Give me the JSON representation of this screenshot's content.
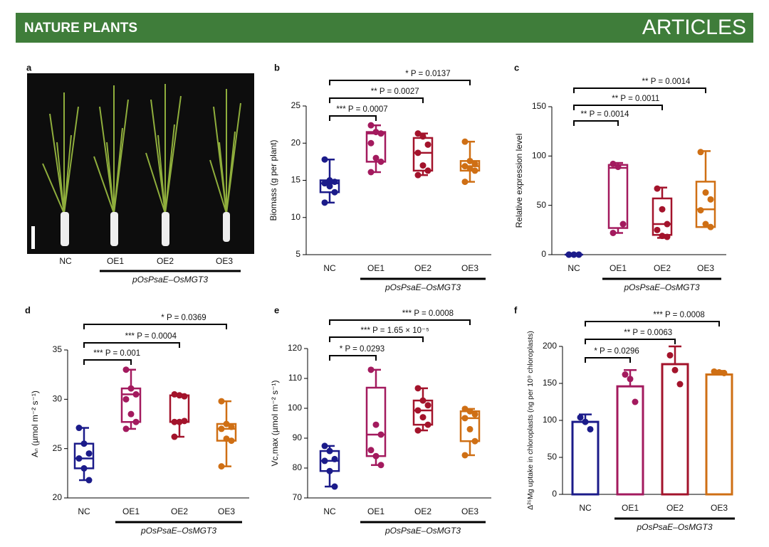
{
  "header": {
    "journal": "NATURE PLANTS",
    "section": "ARTICLES"
  },
  "photo": {
    "panel": "a",
    "categories": [
      "NC",
      "OE1",
      "OE2",
      "OE3"
    ],
    "group_label": "pOsPsaE–OsMGT3"
  },
  "chart_data": [
    {
      "type": "box",
      "panel": "b",
      "y_label": "Biomass (g per plant)",
      "categories": [
        "NC",
        "OE1",
        "OE2",
        "OE3"
      ],
      "group_label": "pOsPsaE–OsMGT3",
      "ylim": [
        5,
        25
      ],
      "yticks": [
        5,
        10,
        15,
        20,
        25
      ],
      "annotations": [
        "*** P = 0.0007",
        "** P = 0.0027",
        "* P = 0.0137"
      ],
      "boxes": [
        {
          "color": "#1b1b8a",
          "min": 12.0,
          "q1": 13.4,
          "median": 14.6,
          "q3": 15.0,
          "max": 17.8,
          "points": [
            17.8,
            15.0,
            14.8,
            14.6,
            14.2,
            13.4,
            12.0
          ]
        },
        {
          "color": "#a31a5e",
          "min": 16.1,
          "q1": 17.5,
          "median": 21.3,
          "q3": 21.5,
          "max": 22.4,
          "points": [
            22.4,
            21.5,
            21.3,
            20.0,
            18.0,
            17.5,
            16.1
          ]
        },
        {
          "color": "#a3132b",
          "min": 15.7,
          "q1": 16.3,
          "median": 18.7,
          "q3": 20.7,
          "max": 21.3,
          "points": [
            21.3,
            20.9,
            19.8,
            18.7,
            17.0,
            16.3,
            15.7
          ]
        },
        {
          "color": "#cf6f14",
          "min": 14.8,
          "q1": 16.3,
          "median": 16.9,
          "q3": 17.6,
          "max": 20.2,
          "points": [
            20.2,
            17.6,
            17.2,
            16.9,
            16.6,
            16.3,
            14.8
          ]
        }
      ]
    },
    {
      "type": "box",
      "panel": "c",
      "y_label": "Relative expression level",
      "categories": [
        "NC",
        "OE1",
        "OE2",
        "OE3"
      ],
      "group_label": "pOsPsaE–OsMGT3",
      "ylim": [
        0,
        150
      ],
      "yticks": [
        0,
        50,
        100,
        150
      ],
      "annotations": [
        "** P = 0.0014",
        "** P = 0.0011",
        "** P = 0.0014"
      ],
      "boxes": [
        {
          "color": "#1b1b8a",
          "min": 0,
          "q1": 0,
          "median": 0,
          "q3": 0,
          "max": 0,
          "points": [
            0,
            0,
            0,
            0,
            0,
            0,
            0
          ]
        },
        {
          "color": "#a31a5e",
          "min": 22,
          "q1": 27,
          "median": 88,
          "q3": 91,
          "max": 93,
          "points": [
            92,
            89,
            31,
            22
          ]
        },
        {
          "color": "#a3132b",
          "min": 17,
          "q1": 20,
          "median": 31,
          "q3": 57,
          "max": 68,
          "points": [
            67,
            46,
            31,
            25,
            19,
            18
          ]
        },
        {
          "color": "#cf6f14",
          "min": 28,
          "q1": 28,
          "median": 46,
          "q3": 74,
          "max": 105,
          "points": [
            104,
            63,
            56,
            45,
            31,
            28
          ]
        }
      ]
    },
    {
      "type": "box",
      "panel": "d",
      "y_label": "Aₙ (µmol m⁻² s⁻¹)",
      "categories": [
        "NC",
        "OE1",
        "OE2",
        "OE3"
      ],
      "group_label": "pOsPsaE–OsMGT3",
      "ylim": [
        20,
        35
      ],
      "yticks": [
        20,
        25,
        30,
        35
      ],
      "annotations": [
        "*** P = 0.001",
        "*** P = 0.0004",
        "* P = 0.0369"
      ],
      "boxes": [
        {
          "color": "#1b1b8a",
          "min": 21.8,
          "q1": 23.0,
          "median": 24.0,
          "q3": 25.5,
          "max": 27.1,
          "points": [
            27.1,
            25.5,
            24.5,
            24.0,
            23.0,
            21.8
          ]
        },
        {
          "color": "#a31a5e",
          "min": 27.0,
          "q1": 27.7,
          "median": 30.5,
          "q3": 31.1,
          "max": 33.0,
          "points": [
            33.0,
            31.1,
            30.5,
            30.0,
            28.5,
            27.7,
            27.0
          ]
        },
        {
          "color": "#a3132b",
          "min": 26.2,
          "q1": 27.7,
          "median": 27.7,
          "q3": 30.4,
          "max": 30.5,
          "points": [
            30.5,
            30.4,
            30.3,
            27.7,
            27.7,
            27.8,
            26.2
          ]
        },
        {
          "color": "#cf6f14",
          "min": 23.2,
          "q1": 25.8,
          "median": 27.0,
          "q3": 27.5,
          "max": 29.8,
          "points": [
            29.8,
            27.5,
            27.2,
            27.0,
            26.0,
            25.8,
            23.2
          ]
        }
      ]
    },
    {
      "type": "box",
      "panel": "e",
      "y_label": "Vc,max (µmol m⁻² s⁻¹)",
      "categories": [
        "NC",
        "OE1",
        "OE2",
        "OE3"
      ],
      "group_label": "pOsPsaE–OsMGT3",
      "ylim": [
        70,
        120
      ],
      "yticks": [
        70,
        80,
        90,
        100,
        110,
        120
      ],
      "annotations": [
        "* P = 0.0293",
        "*** P = 1.65 × 10⁻⁵",
        "*** P = 0.0008"
      ],
      "boxes": [
        {
          "color": "#1b1b8a",
          "min": 73.8,
          "q1": 79.0,
          "median": 82.4,
          "q3": 85.7,
          "max": 87.4,
          "points": [
            87.4,
            85.7,
            83.0,
            82.4,
            79.0,
            73.8
          ]
        },
        {
          "color": "#a31a5e",
          "min": 81.0,
          "q1": 84.0,
          "median": 91.2,
          "q3": 106.9,
          "max": 112.9,
          "points": [
            112.9,
            94.5,
            91.2,
            86.0,
            84.0,
            81.0
          ]
        },
        {
          "color": "#a3132b",
          "min": 92.6,
          "q1": 94.5,
          "median": 99.3,
          "q3": 102.6,
          "max": 106.7,
          "points": [
            106.7,
            102.6,
            101.0,
            99.3,
            97.0,
            94.5,
            92.6
          ]
        },
        {
          "color": "#cf6f14",
          "min": 84.3,
          "q1": 89.0,
          "median": 96.7,
          "q3": 99.0,
          "max": 99.8,
          "points": [
            99.8,
            99.0,
            98.0,
            96.7,
            93.0,
            89.0,
            84.3
          ]
        }
      ]
    },
    {
      "type": "bar",
      "panel": "f",
      "y_label": "Δ²⁵Mg uptake in chloroplasts (ng per 10⁹ chloroplasts)",
      "categories": [
        "NC",
        "OE1",
        "OE2",
        "OE3"
      ],
      "group_label": "pOsPsaE–OsMGT3",
      "ylim": [
        0,
        200
      ],
      "yticks": [
        0,
        50,
        100,
        150,
        200
      ],
      "annotations": [
        "* P = 0.0296",
        "** P = 0.0063",
        "*** P = 0.0008"
      ],
      "colors": [
        "#1b1b8a",
        "#a31a5e",
        "#a3132b",
        "#cf6f14"
      ],
      "values": [
        98,
        146,
        176,
        162
      ],
      "errors": [
        10,
        22,
        24,
        5
      ],
      "points": [
        [
          104,
          98,
          88
        ],
        [
          162,
          156,
          125
        ],
        [
          188,
          168,
          149
        ],
        [
          166,
          165,
          164
        ]
      ]
    }
  ]
}
